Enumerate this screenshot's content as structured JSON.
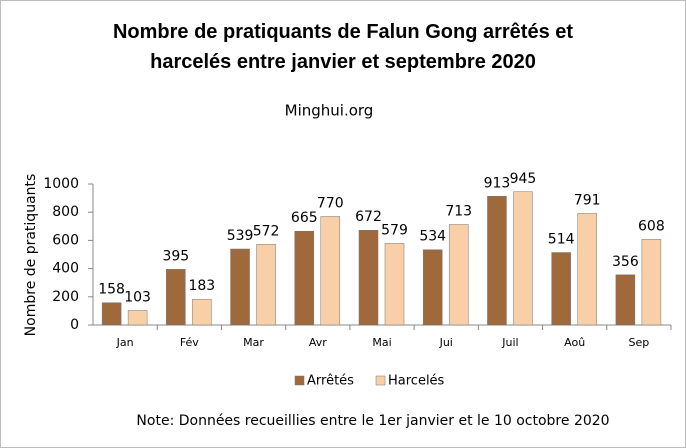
{
  "chart_data": {
    "type": "bar",
    "title": "Nombre de pratiquants de Falun Gong arrêtés et harcelés entre janvier et septembre 2020",
    "subtitle": "Minghui.org",
    "y_label": "Nombre de pratiquants",
    "note": "Note: Données recueillies entre le 1er janvier et le 10 octobre 2020",
    "categories": [
      "Jan",
      "Fév",
      "Mar",
      "Avr",
      "Mai",
      "Jui",
      "Juil",
      "Aoû",
      "Sep"
    ],
    "series": [
      {
        "name": "Arrêtés",
        "color": "#a0693c",
        "values": [
          158,
          395,
          539,
          665,
          672,
          534,
          913,
          514,
          356
        ]
      },
      {
        "name": "Harcelés",
        "color": "#f9cfa8",
        "values": [
          103,
          183,
          572,
          770,
          579,
          713,
          945,
          791,
          608
        ]
      }
    ],
    "ylim": [
      0,
      1000
    ],
    "yticks": [
      0,
      200,
      400,
      600,
      800,
      1000
    ],
    "grid": false,
    "legend": "bottom"
  }
}
